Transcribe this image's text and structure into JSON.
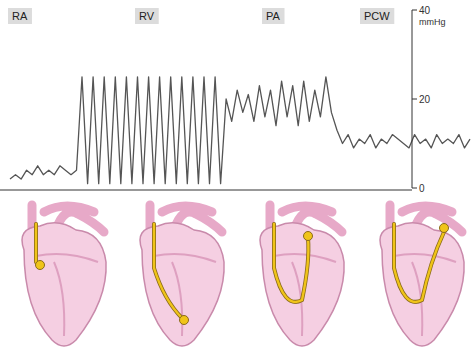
{
  "chart_data": {
    "type": "line",
    "annotations": [
      "RA",
      "RV",
      "PA",
      "PCW"
    ],
    "y_label": "mmHg",
    "values": [
      2,
      3,
      2,
      4,
      3,
      5,
      3,
      4,
      3,
      5,
      4,
      3,
      4,
      25,
      1,
      25,
      1,
      25,
      1,
      25,
      1,
      25,
      1,
      25,
      1,
      25,
      1,
      25,
      1,
      25,
      1,
      25,
      1,
      25,
      1,
      25,
      1,
      25,
      1,
      20,
      15,
      22,
      17,
      21,
      15,
      23,
      16,
      22,
      14,
      24,
      16,
      23,
      14,
      24,
      15,
      22,
      16,
      25,
      17,
      13,
      10,
      12,
      9,
      11,
      10,
      12,
      9,
      11,
      10,
      12,
      11,
      10,
      9,
      12,
      10,
      11,
      9,
      12,
      10,
      11,
      10,
      12,
      9,
      11
    ],
    "color": "#555555",
    "ylim": [
      0,
      40
    ],
    "yticks": [
      0,
      20,
      40
    ],
    "tick_labels": "y"
  }
}
